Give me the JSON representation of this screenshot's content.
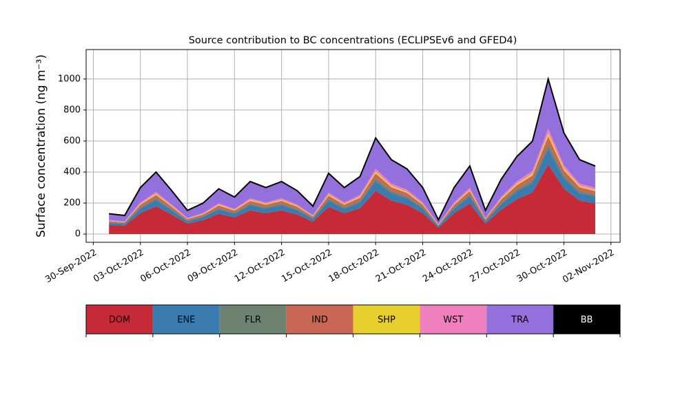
{
  "chart_data": {
    "type": "stacked_area",
    "title": "Source contribution to BC concentrations (ECLIPSEv6 and GFED4)",
    "y_label": "Surface concentration (ng m⁻³)",
    "x": [
      "2022-10-01",
      "2022-10-02",
      "2022-10-03",
      "2022-10-04",
      "2022-10-05",
      "2022-10-06",
      "2022-10-07",
      "2022-10-08",
      "2022-10-09",
      "2022-10-10",
      "2022-10-11",
      "2022-10-12",
      "2022-10-13",
      "2022-10-14",
      "2022-10-15",
      "2022-10-16",
      "2022-10-17",
      "2022-10-18",
      "2022-10-19",
      "2022-10-20",
      "2022-10-21",
      "2022-10-22",
      "2022-10-23",
      "2022-10-24",
      "2022-10-25",
      "2022-10-26",
      "2022-10-27",
      "2022-10-28",
      "2022-10-29",
      "2022-10-30",
      "2022-10-31",
      "2022-11-01"
    ],
    "series": [
      {
        "name": "DOM",
        "color": "#c62a37",
        "values": [
          59,
          54,
          135,
          180,
          126,
          68,
          90,
          131,
          108,
          153,
          135,
          153,
          126,
          81,
          176,
          135,
          167,
          279,
          216,
          189,
          135,
          41,
          135,
          198,
          68,
          158,
          225,
          270,
          450,
          293,
          216,
          198
        ]
      },
      {
        "name": "ENE",
        "color": "#3a7bb0",
        "values": [
          13,
          12,
          30,
          40,
          28,
          15,
          20,
          29,
          24,
          34,
          30,
          34,
          28,
          18,
          39,
          30,
          37,
          62,
          48,
          42,
          30,
          9,
          30,
          44,
          15,
          35,
          50,
          60,
          100,
          65,
          48,
          44
        ]
      },
      {
        "name": "FLR",
        "color": "#6e8270",
        "values": [
          4,
          4,
          9,
          12,
          8,
          5,
          6,
          9,
          7,
          10,
          9,
          10,
          8,
          5,
          12,
          9,
          11,
          19,
          14,
          13,
          9,
          3,
          9,
          13,
          5,
          11,
          15,
          18,
          30,
          20,
          14,
          13
        ]
      },
      {
        "name": "IND",
        "color": "#c96755",
        "values": [
          7,
          6,
          15,
          20,
          14,
          8,
          10,
          15,
          12,
          17,
          15,
          17,
          14,
          9,
          20,
          15,
          19,
          31,
          24,
          21,
          15,
          5,
          15,
          22,
          8,
          18,
          25,
          30,
          50,
          33,
          24,
          22
        ]
      },
      {
        "name": "SHP",
        "color": "#e7cf2e",
        "values": [
          3,
          2,
          6,
          8,
          6,
          3,
          4,
          6,
          5,
          7,
          6,
          7,
          6,
          4,
          8,
          6,
          7,
          12,
          10,
          8,
          6,
          2,
          6,
          9,
          3,
          7,
          10,
          12,
          20,
          13,
          10,
          9
        ]
      },
      {
        "name": "WST",
        "color": "#f07fbd",
        "values": [
          4,
          4,
          9,
          12,
          8,
          5,
          6,
          9,
          7,
          10,
          9,
          10,
          8,
          5,
          12,
          9,
          11,
          19,
          14,
          13,
          9,
          3,
          9,
          13,
          5,
          11,
          15,
          18,
          30,
          20,
          14,
          13
        ]
      },
      {
        "name": "TRA",
        "color": "#9370db",
        "values": [
          40,
          37,
          93,
          124,
          87,
          47,
          62,
          90,
          74,
          105,
          93,
          105,
          87,
          56,
          121,
          93,
          115,
          192,
          149,
          130,
          93,
          28,
          93,
          136,
          47,
          109,
          155,
          186,
          310,
          202,
          149,
          136
        ]
      },
      {
        "name": "BB",
        "color": "#000000",
        "values": [
          1,
          1,
          3,
          4,
          3,
          2,
          2,
          3,
          2,
          3,
          3,
          3,
          3,
          2,
          4,
          3,
          4,
          6,
          5,
          4,
          3,
          1,
          3,
          4,
          2,
          4,
          5,
          6,
          10,
          7,
          5,
          4
        ]
      }
    ],
    "xlim": [
      "2022-09-29T13:00",
      "2022-11-02T14:00"
    ],
    "xticks": [
      {
        "value": "2022-09-30",
        "label": "30-Sep-2022"
      },
      {
        "value": "2022-10-03",
        "label": "03-Oct-2022"
      },
      {
        "value": "2022-10-06",
        "label": "06-Oct-2022"
      },
      {
        "value": "2022-10-09",
        "label": "09-Oct-2022"
      },
      {
        "value": "2022-10-12",
        "label": "12-Oct-2022"
      },
      {
        "value": "2022-10-15",
        "label": "15-Oct-2022"
      },
      {
        "value": "2022-10-18",
        "label": "18-Oct-2022"
      },
      {
        "value": "2022-10-21",
        "label": "21-Oct-2022"
      },
      {
        "value": "2022-10-24",
        "label": "24-Oct-2022"
      },
      {
        "value": "2022-10-27",
        "label": "27-Oct-2022"
      },
      {
        "value": "2022-10-30",
        "label": "30-Oct-2022"
      },
      {
        "value": "2022-11-02",
        "label": "02-Nov-2022"
      }
    ],
    "ylim": [
      -53,
      1190
    ],
    "yticks": [
      0,
      200,
      400,
      600,
      800,
      1000
    ],
    "grid": true
  }
}
